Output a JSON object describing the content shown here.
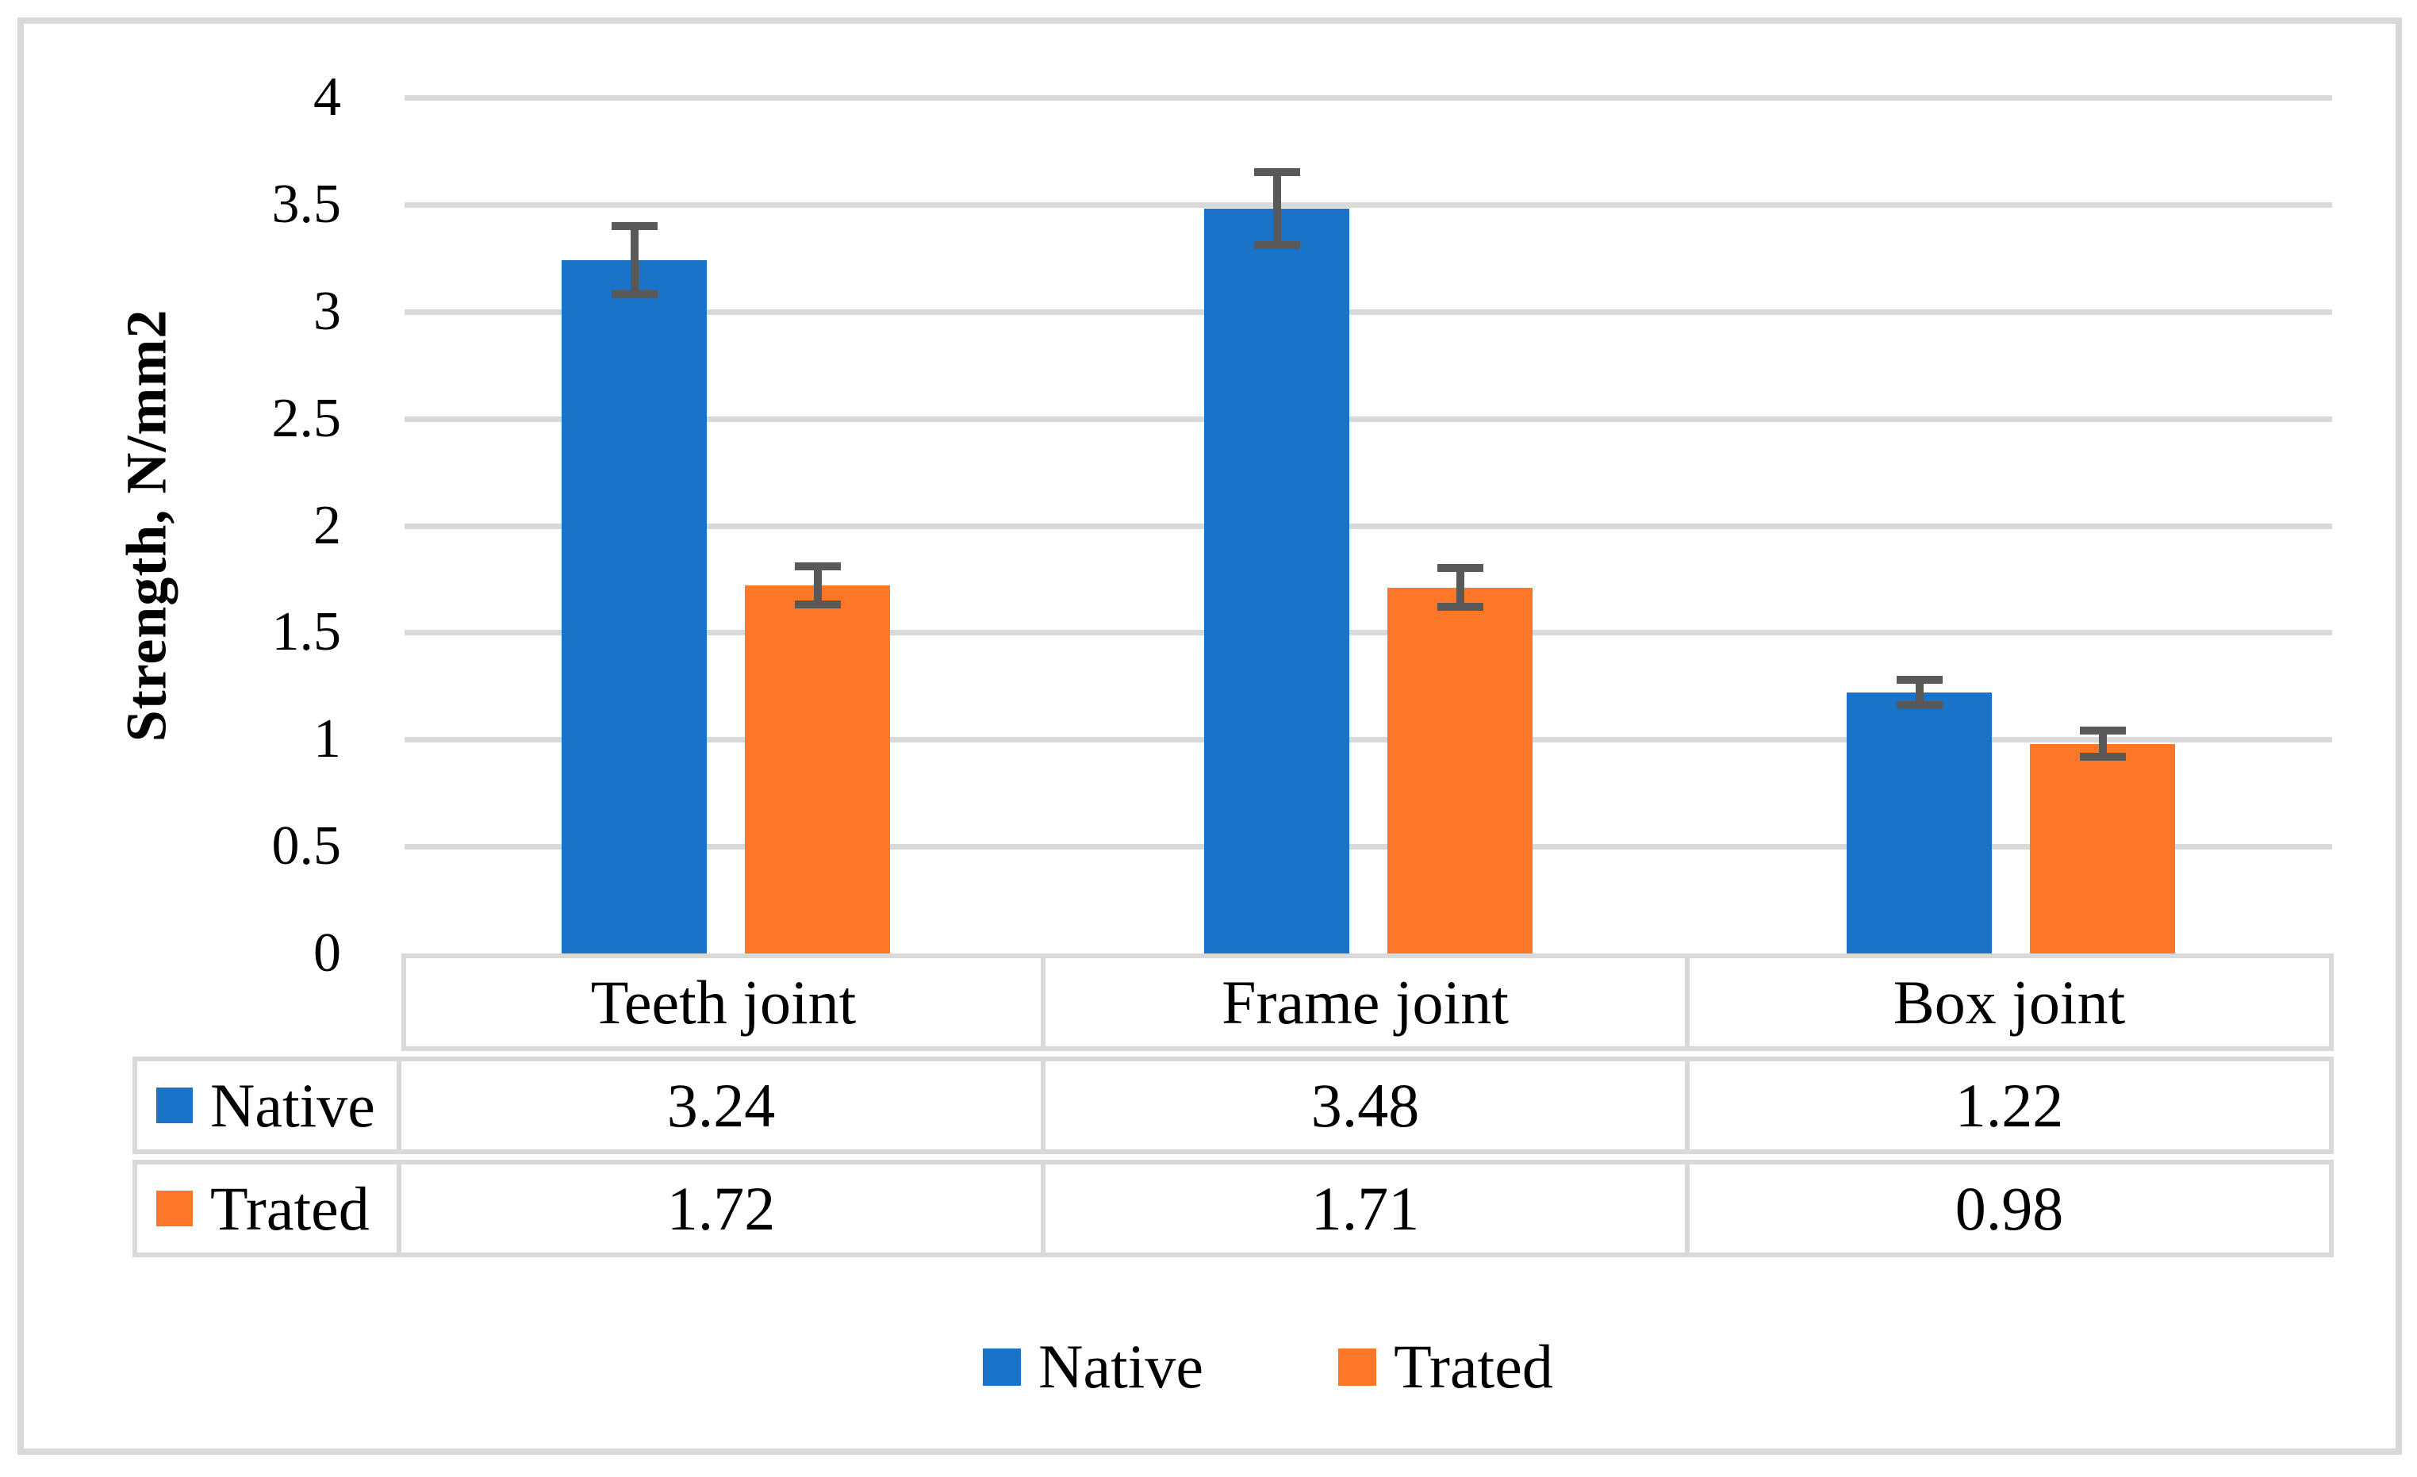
{
  "chart_data": {
    "type": "bar",
    "title": "",
    "ylabel": "Strength, N/mm2",
    "xlabel": "",
    "categories": [
      "Teeth joint",
      "Frame joint",
      "Box joint"
    ],
    "series": [
      {
        "name": "Native",
        "color": "#1B73C8",
        "values": [
          3.24,
          3.48,
          1.22
        ],
        "errors": [
          0.16,
          0.17,
          0.06
        ]
      },
      {
        "name": "Trated",
        "color": "#FC7828",
        "values": [
          1.72,
          1.71,
          0.98
        ],
        "errors": [
          0.09,
          0.09,
          0.06
        ]
      }
    ],
    "ylim": [
      0,
      4
    ],
    "ytick_labels": [
      "4",
      "3.5",
      "3",
      "2.5",
      "2",
      "1.5",
      "1",
      "0.5",
      "0"
    ],
    "grid": true,
    "gridline_color": "#D9D9D9",
    "error_bar_color": "#595959",
    "frame_color": "#D9D9D9",
    "legend_position": "bottom",
    "data_table": true
  }
}
